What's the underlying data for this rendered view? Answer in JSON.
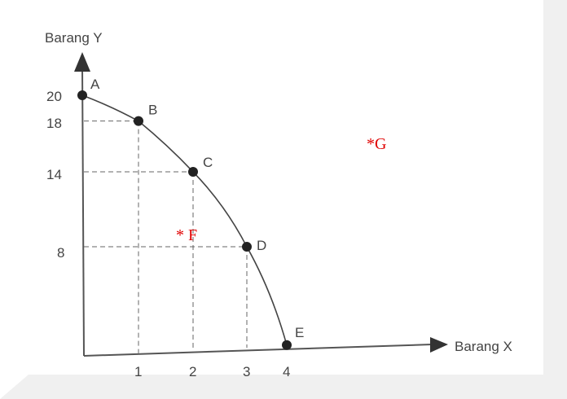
{
  "chart_data": {
    "type": "line",
    "title": "",
    "xlabel": "Barang X",
    "ylabel": "Barang Y",
    "x_ticks": [
      "1",
      "2",
      "3",
      "4"
    ],
    "y_ticks": [
      "20",
      "18",
      "14",
      "8"
    ],
    "xlim": [
      0,
      4
    ],
    "ylim": [
      0,
      20
    ],
    "grid": false,
    "points": [
      {
        "label": "A",
        "x": 0,
        "y": 20
      },
      {
        "label": "B",
        "x": 1,
        "y": 18
      },
      {
        "label": "C",
        "x": 2,
        "y": 14
      },
      {
        "label": "D",
        "x": 3,
        "y": 8
      },
      {
        "label": "E",
        "x": 4,
        "y": 0
      }
    ],
    "annotations": [
      {
        "text": "* F",
        "x": 2,
        "y": 8,
        "color": "#e00000"
      },
      {
        "text": "*G",
        "x": 5.5,
        "y": 16,
        "color": "#e00000"
      }
    ]
  }
}
